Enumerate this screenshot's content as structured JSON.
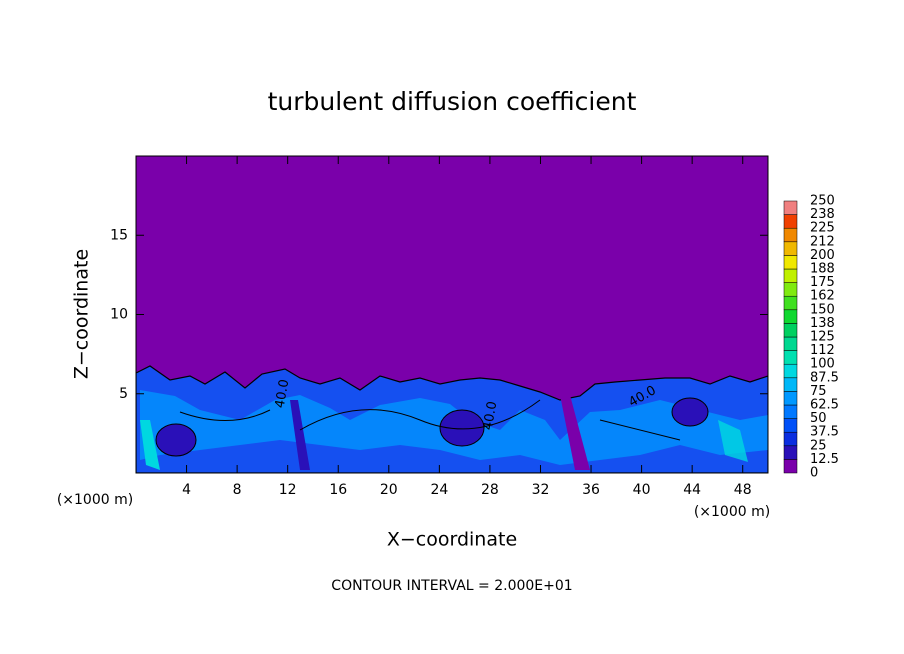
{
  "chart_data": {
    "type": "contour",
    "title": "turbulent diffusion coefficient",
    "xlabel": "X−coordinate",
    "ylabel": "Z−coordinate",
    "x_unit": "(×1000 m)",
    "footer": "CONTOUR INTERVAL = 2.000E+01",
    "contour_labels": [
      "40.0",
      "40.0",
      "40.0"
    ],
    "xlim": [
      0,
      50
    ],
    "ylim": [
      0,
      20
    ],
    "xticks": [
      4,
      8,
      12,
      16,
      20,
      24,
      28,
      32,
      36,
      40,
      44,
      48
    ],
    "yticks": [
      5,
      10,
      15
    ],
    "background_color": "#7a00aa",
    "levels": [
      0,
      12.5,
      25,
      37.5,
      50,
      62.5,
      75,
      87.5,
      100,
      112,
      125,
      138,
      150,
      162,
      175,
      188,
      200,
      212,
      225,
      238,
      250
    ],
    "colors": [
      "#7a00aa",
      "#2a10b8",
      "#0a2ee0",
      "#0050f8",
      "#0078ff",
      "#0098ff",
      "#00b8f8",
      "#00d8e0",
      "#00e0b0",
      "#00d890",
      "#00d060",
      "#10d830",
      "#40e020",
      "#80ea10",
      "#c0f000",
      "#f0e800",
      "#f0b800",
      "#f08800",
      "#f04000",
      "#f08080"
    ]
  }
}
